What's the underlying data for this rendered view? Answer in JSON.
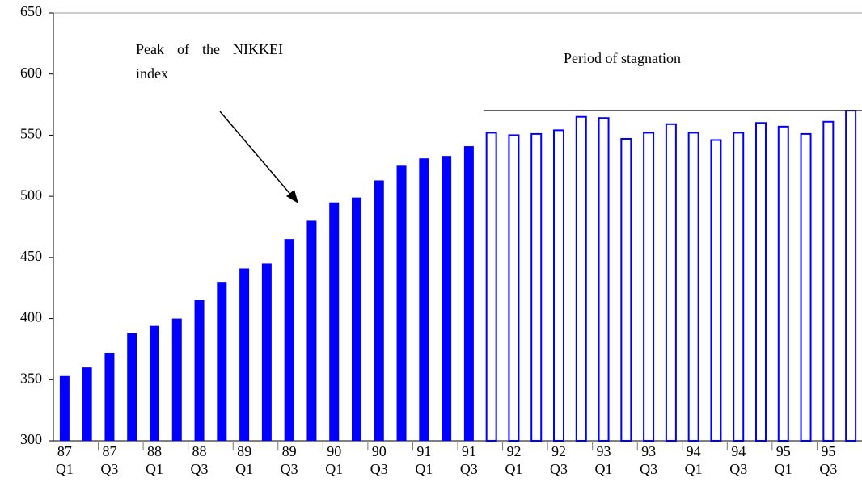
{
  "chart_data": {
    "type": "bar",
    "categories": [
      "87 Q1",
      null,
      "87 Q3",
      null,
      "88 Q1",
      null,
      "88 Q3",
      null,
      "89 Q1",
      null,
      "89 Q3",
      null,
      "90 Q1",
      null,
      "90 Q3",
      null,
      "91 Q1",
      null,
      "91 Q3",
      null,
      "92 Q1",
      null,
      "92 Q3",
      null,
      "93 Q1",
      null,
      "93 Q3",
      null,
      "94 Q1",
      null,
      "94 Q3",
      null,
      "95 Q1",
      null,
      "95 Q3",
      null
    ],
    "series": [
      {
        "color": "#0000ff",
        "style": "filled",
        "values": [
          353,
          360,
          372,
          388,
          394,
          400,
          415,
          430,
          441,
          445,
          465,
          480,
          495,
          499,
          513,
          525,
          531,
          533,
          541,
          null,
          null,
          null,
          null,
          null,
          null,
          null,
          null,
          null,
          null,
          null,
          null,
          null,
          null,
          null,
          null,
          null
        ]
      },
      {
        "color": "#0000ff",
        "style": "outline",
        "values": [
          null,
          null,
          null,
          null,
          null,
          null,
          null,
          null,
          null,
          null,
          null,
          null,
          null,
          null,
          null,
          null,
          null,
          null,
          null,
          552,
          550,
          551,
          554,
          565,
          564,
          547,
          552,
          559,
          552,
          546,
          552,
          560,
          557,
          551,
          561,
          570
        ]
      }
    ],
    "ylim": [
      300,
      650
    ],
    "yticks": [
      300,
      350,
      400,
      450,
      500,
      550,
      600,
      650
    ],
    "annotations": [
      {
        "text": "Peak of the NIKKEI index"
      },
      {
        "text": "Period of stagnation",
        "line_value": 570
      }
    ]
  }
}
